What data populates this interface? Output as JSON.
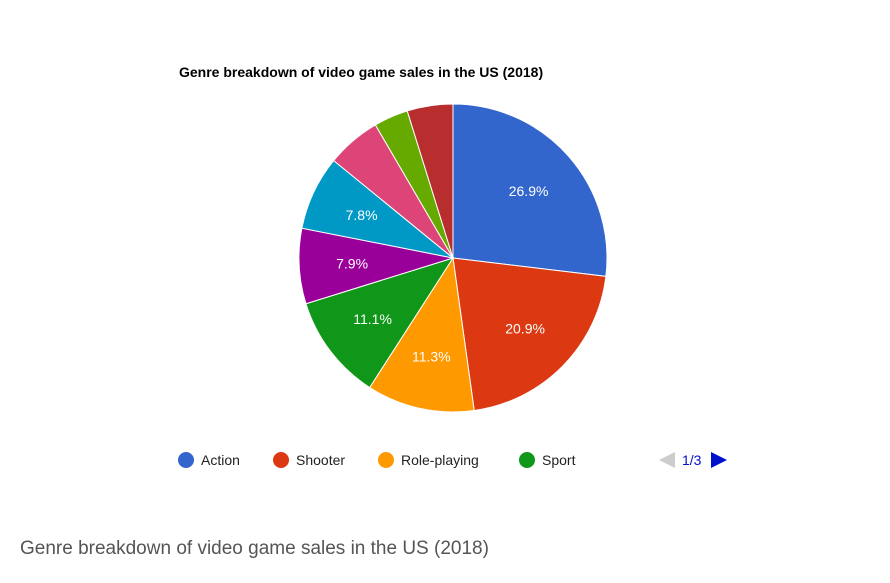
{
  "chart_data": {
    "type": "pie",
    "title": "Genre breakdown of video game sales in the US (2018)",
    "slices": [
      {
        "label": "Action",
        "value": 26.9,
        "display": "26.9%",
        "color": "#3366cc"
      },
      {
        "label": "Shooter",
        "value": 20.9,
        "display": "20.9%",
        "color": "#dc3912"
      },
      {
        "label": "Role-playing",
        "value": 11.3,
        "display": "11.3%",
        "color": "#ff9900"
      },
      {
        "label": "Sport",
        "value": 11.1,
        "display": "11.1%",
        "color": "#109618"
      },
      {
        "label": "",
        "value": 7.9,
        "display": "7.9%",
        "color": "#990099"
      },
      {
        "label": "",
        "value": 7.8,
        "display": "7.8%",
        "color": "#0099c6"
      },
      {
        "label": "",
        "value": 5.7,
        "display": "",
        "color": "#dd4477"
      },
      {
        "label": "",
        "value": 3.6,
        "display": "",
        "color": "#66aa00"
      },
      {
        "label": "",
        "value": 4.8,
        "display": "",
        "color": "#b82e2e"
      }
    ],
    "legend": {
      "position": "bottom",
      "page": "1/3",
      "visible_entries": [
        "Action",
        "Shooter",
        "Role-playing",
        "Sport"
      ]
    }
  },
  "caption": "Genre breakdown of video game sales in the US (2018)"
}
